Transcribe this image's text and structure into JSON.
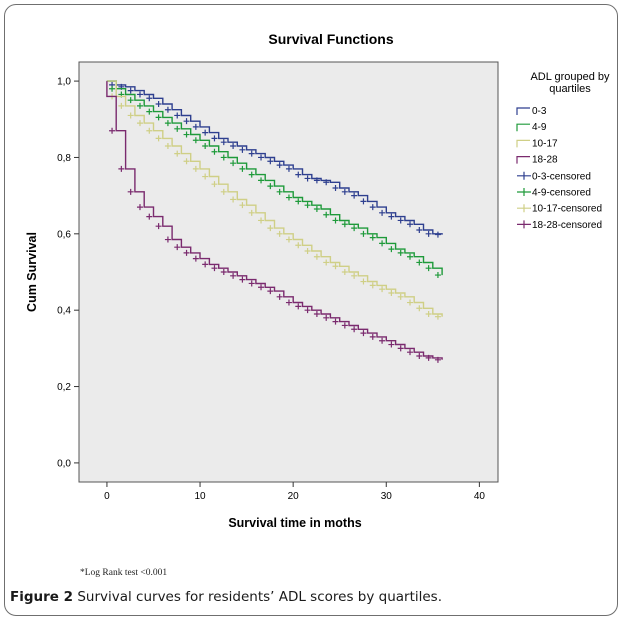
{
  "chart_data": {
    "type": "line",
    "title": "Survival Functions",
    "xlabel": "Survival time in moths",
    "ylabel": "Cum Survival",
    "xlim": [
      -3,
      42
    ],
    "ylim": [
      -0.05,
      1.05
    ],
    "xticks": [
      0,
      10,
      20,
      30,
      40
    ],
    "yticks": [
      0.0,
      0.2,
      0.4,
      0.6,
      0.8,
      1.0
    ],
    "ytick_labels": [
      "0,0",
      "0,2",
      "0,4",
      "0,6",
      "0,8",
      "1,0"
    ],
    "legend_title": "ADL grouped by quartiles",
    "legend_position": "right",
    "series": [
      {
        "name": "0-3",
        "censored_name": "0-3-censored",
        "color": "#2e3f8f",
        "x": [
          0,
          1,
          2,
          3,
          4,
          5,
          6,
          7,
          8,
          9,
          10,
          11,
          12,
          13,
          14,
          15,
          16,
          17,
          18,
          19,
          20,
          21,
          22,
          23,
          24,
          25,
          26,
          27,
          28,
          29,
          30,
          31,
          32,
          33,
          34,
          35,
          36
        ],
        "y": [
          1.0,
          0.99,
          0.985,
          0.975,
          0.965,
          0.955,
          0.94,
          0.925,
          0.91,
          0.895,
          0.88,
          0.865,
          0.85,
          0.84,
          0.83,
          0.82,
          0.81,
          0.8,
          0.79,
          0.78,
          0.77,
          0.755,
          0.745,
          0.74,
          0.735,
          0.72,
          0.71,
          0.7,
          0.685,
          0.67,
          0.655,
          0.645,
          0.635,
          0.625,
          0.61,
          0.6,
          0.598
        ]
      },
      {
        "name": "4-9",
        "censored_name": "4-9-censored",
        "color": "#1e9a3a",
        "x": [
          0,
          1,
          2,
          3,
          4,
          5,
          6,
          7,
          8,
          9,
          10,
          11,
          12,
          13,
          14,
          15,
          16,
          17,
          18,
          19,
          20,
          21,
          22,
          23,
          24,
          25,
          26,
          27,
          28,
          29,
          30,
          31,
          32,
          33,
          34,
          35,
          36
        ],
        "y": [
          1.0,
          0.98,
          0.965,
          0.95,
          0.935,
          0.92,
          0.905,
          0.89,
          0.875,
          0.86,
          0.845,
          0.83,
          0.815,
          0.8,
          0.785,
          0.77,
          0.755,
          0.74,
          0.725,
          0.71,
          0.695,
          0.685,
          0.675,
          0.665,
          0.65,
          0.635,
          0.625,
          0.615,
          0.6,
          0.59,
          0.575,
          0.56,
          0.55,
          0.54,
          0.525,
          0.51,
          0.492
        ]
      },
      {
        "name": "10-17",
        "censored_name": "10-17-censored",
        "color": "#cfcf86",
        "x": [
          0,
          1,
          2,
          3,
          4,
          5,
          6,
          7,
          8,
          9,
          10,
          11,
          12,
          13,
          14,
          15,
          16,
          17,
          18,
          19,
          20,
          21,
          22,
          23,
          24,
          25,
          26,
          27,
          28,
          29,
          30,
          31,
          32,
          33,
          34,
          35,
          36
        ],
        "y": [
          1.0,
          0.96,
          0.935,
          0.91,
          0.89,
          0.87,
          0.85,
          0.83,
          0.81,
          0.79,
          0.77,
          0.75,
          0.73,
          0.71,
          0.69,
          0.675,
          0.655,
          0.635,
          0.615,
          0.6,
          0.585,
          0.57,
          0.555,
          0.54,
          0.525,
          0.515,
          0.5,
          0.49,
          0.475,
          0.465,
          0.455,
          0.445,
          0.435,
          0.42,
          0.405,
          0.39,
          0.383
        ]
      },
      {
        "name": "18-28",
        "censored_name": "18-28-censored",
        "color": "#7a2a6e",
        "x": [
          0,
          1,
          2,
          3,
          4,
          5,
          6,
          7,
          8,
          9,
          10,
          11,
          12,
          13,
          14,
          15,
          16,
          17,
          18,
          19,
          20,
          21,
          22,
          23,
          24,
          25,
          26,
          27,
          28,
          29,
          30,
          31,
          32,
          33,
          34,
          35,
          36
        ],
        "y": [
          0.96,
          0.87,
          0.77,
          0.71,
          0.67,
          0.645,
          0.62,
          0.585,
          0.565,
          0.55,
          0.535,
          0.52,
          0.51,
          0.5,
          0.49,
          0.48,
          0.47,
          0.46,
          0.45,
          0.435,
          0.42,
          0.41,
          0.4,
          0.39,
          0.38,
          0.37,
          0.36,
          0.35,
          0.34,
          0.33,
          0.32,
          0.31,
          0.3,
          0.29,
          0.28,
          0.275,
          0.27
        ]
      }
    ]
  },
  "footnote": "*Log Rank test <0.001",
  "caption": {
    "label": "Figure 2",
    "text": " Survival curves for residents’ ADL scores by quartiles."
  }
}
